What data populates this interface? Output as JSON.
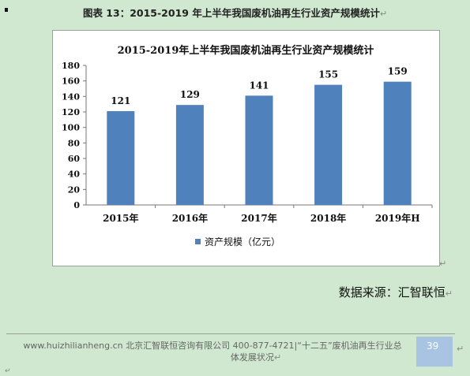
{
  "caption": {
    "text": "图表 13：2015-2019 年上半年我国废机油再生行业资产规模统计"
  },
  "paragraph_mark": "↵",
  "chart_data": {
    "type": "bar",
    "title": "2015-2019年上半年我国废机油再生行业资产规模统计",
    "categories": [
      "2015年",
      "2016年",
      "2017年",
      "2018年",
      "2019年H"
    ],
    "series": [
      {
        "name": "资产规模（亿元）",
        "values": [
          121,
          129,
          141,
          155,
          159
        ]
      }
    ],
    "data_labels": [
      "121",
      "129",
      "141",
      "155",
      "159"
    ],
    "ylim": [
      0,
      180
    ],
    "yticks": [
      0,
      20,
      40,
      60,
      80,
      100,
      120,
      140,
      160,
      180
    ],
    "grid": false,
    "legend": "bottom",
    "bar_color": "#4f81bd"
  },
  "source": {
    "text": "数据来源：汇智联恒"
  },
  "footer": {
    "line1": "www.huizhilianheng.cn 北京汇智联恒咨询有限公司  400-877-4721|“十二五”废机油再生行业总",
    "line2": "体发展状况",
    "page_number": "39"
  }
}
